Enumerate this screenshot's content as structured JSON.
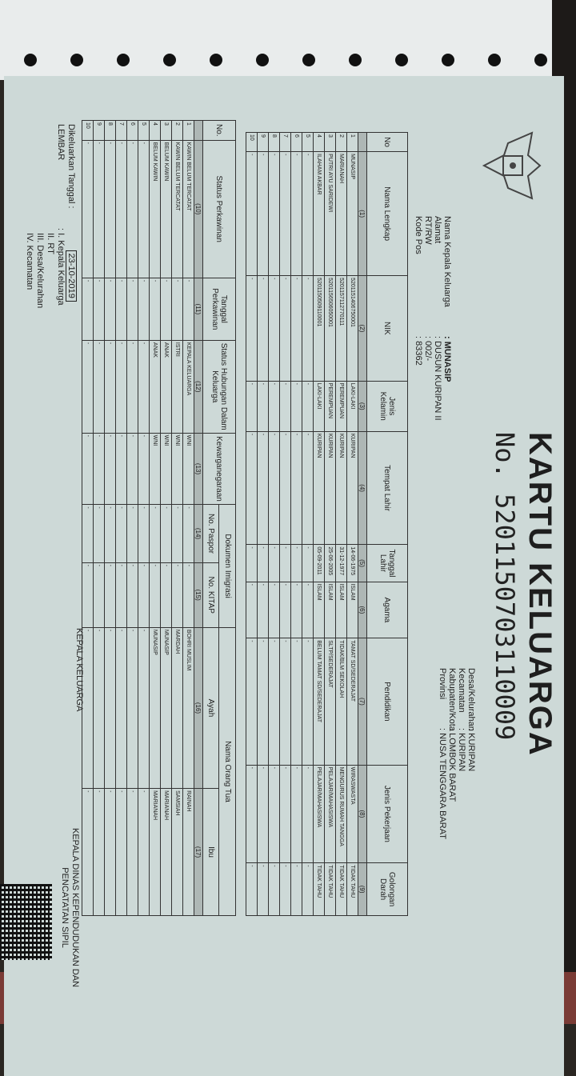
{
  "document": {
    "title": "KARTU KELUARGA",
    "number": "No. 5201150703110009",
    "left_header": [
      {
        "label": "Nama Kepala Keluarga",
        "value": ": MUNASIP"
      },
      {
        "label": "Alamat",
        "value": ": DUSUN KURIPAN II"
      },
      {
        "label": "RT/RW",
        "value": ": 002/-"
      },
      {
        "label": "Kode Pos",
        "value": ": 83362"
      }
    ],
    "right_header": [
      {
        "label": "Desa/Kelurahan",
        "value": ": KURIPAN"
      },
      {
        "label": "Kecamatan",
        "value": ": KURIPAN"
      },
      {
        "label": "Kabupaten/Kota",
        "value": ": LOMBOK BARAT"
      },
      {
        "label": "Provinsi",
        "value": ": NUSA TENGGARA BARAT"
      }
    ],
    "table1": {
      "headers": [
        "No",
        "Nama Lengkap",
        "NIK",
        "Jenis Kelamin",
        "Tempat Lahir",
        "Tanggal Lahir",
        "Agama",
        "Pendidikan",
        "Jenis Pekerjaan",
        "Golongan Darah"
      ],
      "numbers": [
        "",
        "(1)",
        "(2)",
        "(3)",
        "(4)",
        "(5)",
        "(6)",
        "(7)",
        "(8)",
        "(9)"
      ],
      "rows": [
        [
          "1",
          "MUNASIP",
          "5201151406750001",
          "LAKI-LAKI",
          "KURIPAN",
          "14-06-1975",
          "ISLAM",
          "TAMAT SD/SEDERAJAT",
          "WIRASWASTA",
          "TIDAK TAHU"
        ],
        [
          "2",
          "MARIANAH",
          "5201157112770111",
          "PEREMPUAN",
          "KURIPAN",
          "31-12-1977",
          "ISLAM",
          "TIDAK/BLM SEKOLAH",
          "MENGURUS RUMAH TANGGA",
          "TIDAK TAHU"
        ],
        [
          "3",
          "PUTRI AYU SARIDEWI",
          "5201156506050001",
          "PEREMPUAN",
          "KURIPAN",
          "25-06-2005",
          "ISLAM",
          "SLTP/SEDERAJAT",
          "PELAJAR/MAHASISWA",
          "TIDAK TAHU"
        ],
        [
          "4",
          "ILAHAM AKBAR",
          "5201150509110001",
          "LAKI-LAKI",
          "KURIPAN",
          "05-09-2011",
          "ISLAM",
          "BELUM TAMAT SD/SEDERAJAT",
          "PELAJAR/MAHASISWA",
          "TIDAK TAHU"
        ],
        [
          "5",
          "-",
          "-",
          "-",
          "-",
          "-",
          "-",
          "-",
          "-",
          "-"
        ],
        [
          "6",
          "-",
          "-",
          "-",
          "-",
          "-",
          "-",
          "-",
          "-",
          "-"
        ],
        [
          "7",
          "-",
          "-",
          "-",
          "-",
          "-",
          "-",
          "-",
          "-",
          "-"
        ],
        [
          "8",
          "-",
          "-",
          "-",
          "-",
          "-",
          "-",
          "-",
          "-",
          "-"
        ],
        [
          "9",
          "-",
          "-",
          "-",
          "-",
          "-",
          "-",
          "-",
          "-",
          "-"
        ],
        [
          "10",
          "-",
          "-",
          "-",
          "-",
          "-",
          "-",
          "-",
          "-",
          "-"
        ]
      ]
    },
    "table2": {
      "group_headers": {
        "dokumen": "Dokumen Imigrasi",
        "orang_tua": "Nama Orang Tua"
      },
      "headers": [
        "No.",
        "Status Perkawinan",
        "Tanggal Perkawinan",
        "Status Hubungan Dalam Keluarga",
        "Kewarganegaraan",
        "No. Paspor",
        "No. KITAP",
        "Ayah",
        "Ibu"
      ],
      "numbers": [
        "",
        "(10)",
        "(11)",
        "(12)",
        "(13)",
        "(14)",
        "(15)",
        "(16)",
        "(17)"
      ],
      "rows": [
        [
          "1",
          "KAWIN BELUM TERCATAT",
          "-",
          "KEPALA KELUARGA",
          "WNI",
          "-",
          "-",
          "BOHRI MUSLIM",
          "RAINAH"
        ],
        [
          "2",
          "KAWIN BELUM TERCATAT",
          "-",
          "ISTRI",
          "WNI",
          "-",
          "-",
          "MARDAH",
          "SAMSIAH"
        ],
        [
          "3",
          "BELUM KAWIN",
          "-",
          "ANAK",
          "WNI",
          "-",
          "-",
          "MUNASIP",
          "MARIANAH"
        ],
        [
          "4",
          "BELUM KAWIN",
          "-",
          "ANAK",
          "WNI",
          "-",
          "-",
          "MUNASIP",
          "MARIANAH"
        ],
        [
          "5",
          "-",
          "-",
          "-",
          "-",
          "-",
          "-",
          "-",
          "-"
        ],
        [
          "6",
          "-",
          "-",
          "-",
          "-",
          "-",
          "-",
          "-",
          "-"
        ],
        [
          "7",
          "-",
          "-",
          "-",
          "-",
          "-",
          "-",
          "-",
          "-"
        ],
        [
          "8",
          "-",
          "-",
          "-",
          "-",
          "-",
          "-",
          "-",
          "-"
        ],
        [
          "9",
          "-",
          "-",
          "-",
          "-",
          "-",
          "-",
          "-",
          "-"
        ],
        [
          "10",
          "-",
          "-",
          "-",
          "-",
          "-",
          "-",
          "-",
          "-"
        ]
      ]
    },
    "footer": {
      "issued_label": "Dikeluarkan Tanggal",
      "issued_date": "23-10-2019",
      "lembar_label": "LEMBAR",
      "lembar_items": [
        "I.  Kepala Keluarga",
        "II.  RT",
        "III.  Desa/Kelurahan",
        "IV.  Kecamatan"
      ],
      "sign_left": "KEPALA KELUARGA",
      "sign_right_1": "KEPALA DINAS KEPENDUDUKAN DAN",
      "sign_right_2": "PENCATATAN SIPIL"
    }
  }
}
